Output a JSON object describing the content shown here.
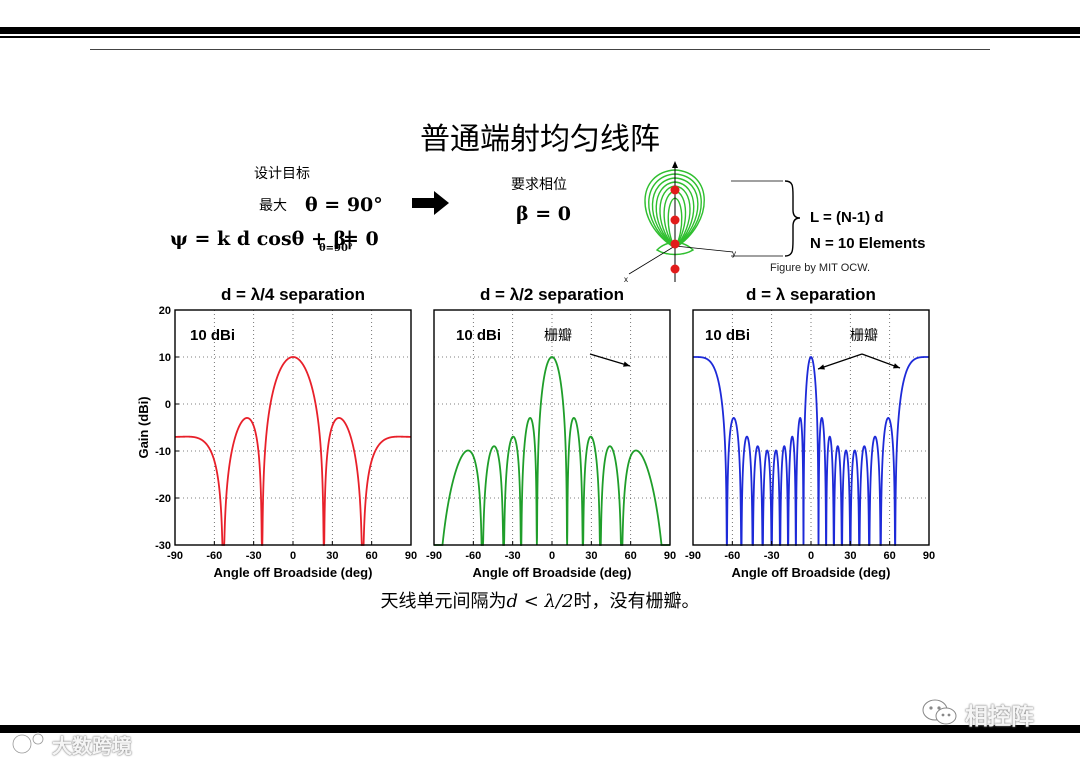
{
  "slide": {
    "title": "普通端射均匀线阵",
    "design_goal_label": "设计目标",
    "max_label": "最大",
    "max_condition": "θ = 90°",
    "psi_equation": "ψ = k d cosθ + β|",
    "psi_subscript": "θ=90°",
    "psi_rhs": "= 0",
    "phase_label": "要求相位",
    "beta_value": "β = 0",
    "brace_line1": "L = (N-1) d",
    "brace_line2": "N = 10 Elements",
    "figure_credit": "Figure by MIT OCW.",
    "axis_x": "x",
    "axis_y": "y",
    "caption_prefix": "天线单元间隔为",
    "caption_math": "d < λ/2",
    "caption_suffix": "时，没有栅瓣。"
  },
  "colors": {
    "red": "#e8202a",
    "green": "#1f9e2a",
    "blue": "#1d2ad8",
    "lobe": "#2fbf2f",
    "element": "#e21b1b"
  },
  "chart_data": [
    {
      "type": "line",
      "title": "d = λ/4 separation",
      "annotation": "10 dBi",
      "color": "#e8202a",
      "xlabel": "Angle off Broadside (deg)",
      "ylabel": "Gain (dBi)",
      "xlim": [
        -90,
        90
      ],
      "ylim": [
        -30,
        20
      ],
      "xticks": [
        -90,
        -60,
        -30,
        0,
        30,
        60,
        90
      ],
      "yticks": [
        20,
        10,
        0,
        -10,
        -20,
        -30
      ],
      "grid": true,
      "n_elements": 10,
      "spacing_wavelengths": 0.25,
      "peak_gain_dbi": 10,
      "grating_lobe_label": ""
    },
    {
      "type": "line",
      "title": "d = λ/2 separation",
      "annotation": "10 dBi",
      "color": "#1f9e2a",
      "xlabel": "Angle off Broadside (deg)",
      "ylabel": "",
      "xlim": [
        -90,
        90
      ],
      "ylim": [
        -30,
        20
      ],
      "xticks": [
        -90,
        -60,
        -30,
        0,
        30,
        60,
        90
      ],
      "yticks": [],
      "grid": true,
      "n_elements": 10,
      "spacing_wavelengths": 0.5,
      "peak_gain_dbi": 10,
      "grating_lobe_label": "栅瓣"
    },
    {
      "type": "line",
      "title": "d = λ separation",
      "annotation": "10 dBi",
      "color": "#1d2ad8",
      "xlabel": "Angle off Broadside (deg)",
      "ylabel": "",
      "xlim": [
        -90,
        90
      ],
      "ylim": [
        -30,
        20
      ],
      "xticks": [
        -90,
        -60,
        -30,
        0,
        30,
        60,
        90
      ],
      "yticks": [],
      "grid": true,
      "n_elements": 10,
      "spacing_wavelengths": 1.0,
      "peak_gain_dbi": 10,
      "grating_lobe_label": "栅瓣"
    }
  ],
  "watermarks": {
    "left": "大数跨境",
    "right": "相控阵"
  }
}
